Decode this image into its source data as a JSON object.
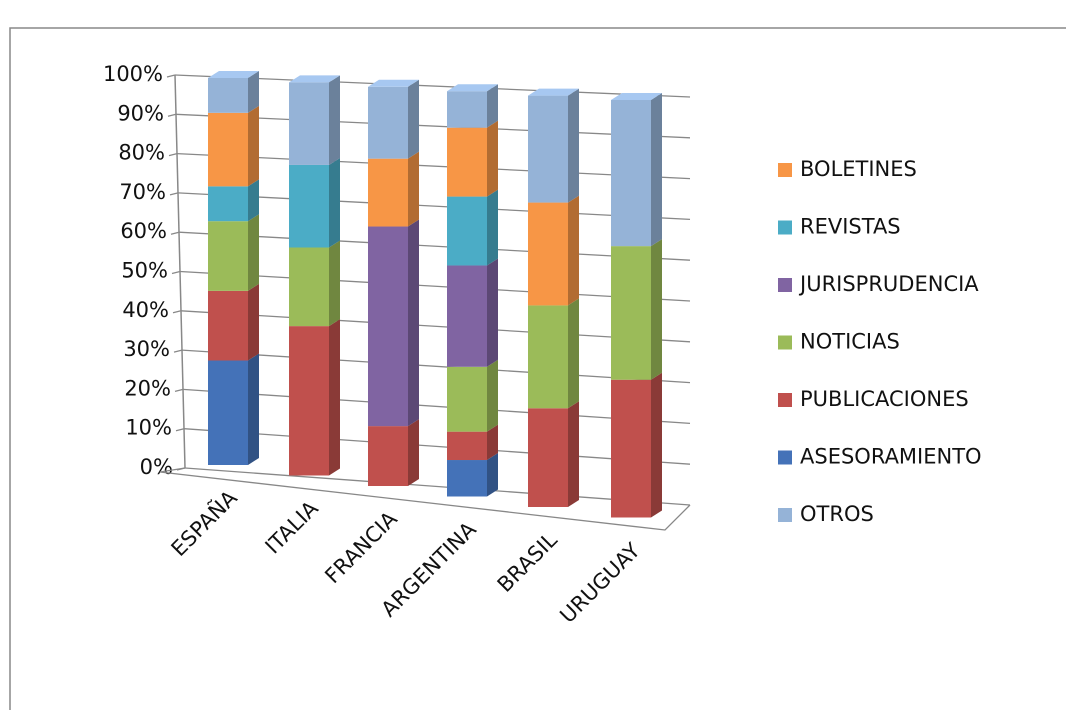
{
  "chart_data": {
    "type": "stacked-bar-3d",
    "categories": [
      "ESPAÑA",
      "ITALIA",
      "FRANCIA",
      "ARGENTINA",
      "BRASIL",
      "URUGUAY"
    ],
    "series": [
      {
        "name": "ASESORAMIENTO",
        "color": "#4472b8",
        "values": [
          27,
          null,
          null,
          9,
          null,
          null
        ]
      },
      {
        "name": "PUBLICACIONES",
        "color": "#c0504d",
        "values": [
          18,
          38,
          15,
          7,
          24,
          33
        ]
      },
      {
        "name": "NOTICIAS",
        "color": "#9bbb59",
        "values": [
          18,
          20,
          null,
          16,
          25,
          32
        ]
      },
      {
        "name": "JURISPRUDENCIA",
        "color": "#8064a2",
        "values": [
          null,
          null,
          50,
          25,
          null,
          null
        ]
      },
      {
        "name": "REVISTAS",
        "color": "#4bacc6",
        "values": [
          9,
          21,
          null,
          17,
          null,
          null
        ]
      },
      {
        "name": "BOLETINES",
        "color": "#f79646",
        "values": [
          19,
          null,
          17,
          17,
          25,
          null
        ]
      },
      {
        "name": "OTROS",
        "color": "#95b3d7",
        "values": [
          9,
          21,
          18,
          9,
          26,
          35
        ]
      }
    ],
    "ylim": [
      0,
      100
    ],
    "yticks": [
      {
        "value": 0,
        "label": "0%"
      },
      {
        "value": 10,
        "label": "10%"
      },
      {
        "value": 20,
        "label": "20%"
      },
      {
        "value": 30,
        "label": "30%"
      },
      {
        "value": 40,
        "label": "40%"
      },
      {
        "value": 50,
        "label": "50%"
      },
      {
        "value": 60,
        "label": "60%"
      },
      {
        "value": 70,
        "label": "70%"
      },
      {
        "value": 80,
        "label": "80%"
      },
      {
        "value": 90,
        "label": "90%"
      },
      {
        "value": 100,
        "label": "100%"
      }
    ],
    "grid": true
  }
}
